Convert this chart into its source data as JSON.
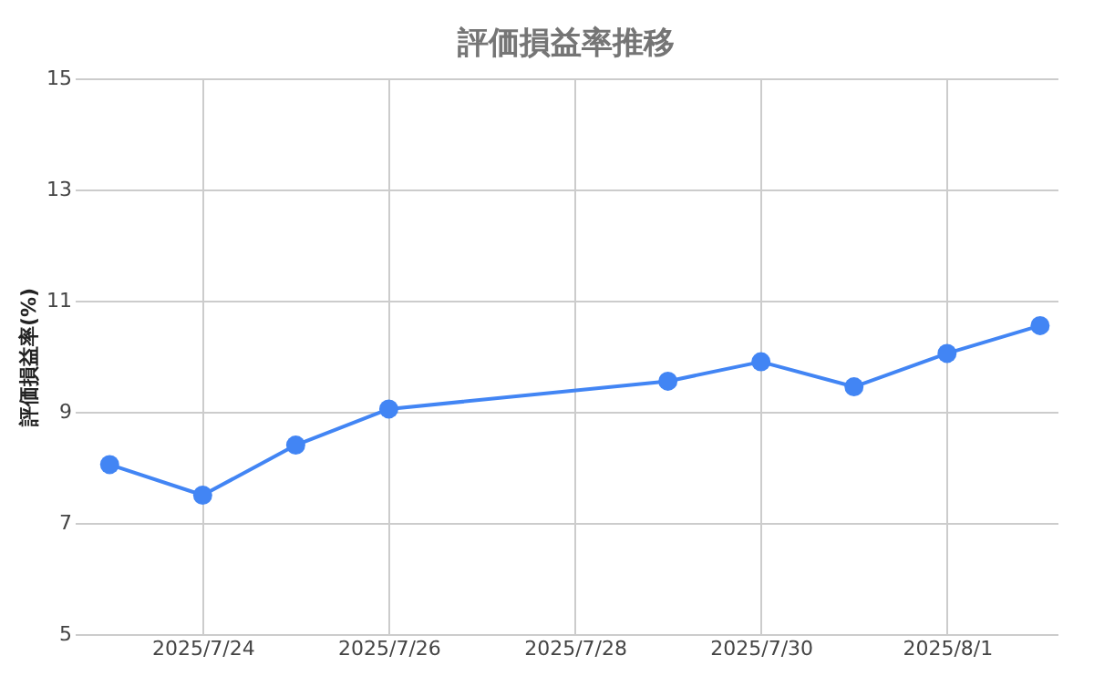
{
  "chart_data": {
    "type": "line",
    "title": "評価損益率推移",
    "ylabel": "評価損益率(%)",
    "x": [
      "2025-07-23",
      "2025-07-24",
      "2025-07-25",
      "2025-07-26",
      "2025-07-29",
      "2025-07-30",
      "2025-07-31",
      "2025-08-01",
      "2025-08-02"
    ],
    "series": [
      {
        "color": "#4285f4",
        "values": [
          8.05,
          7.5,
          8.4,
          9.05,
          9.55,
          9.9,
          9.45,
          10.05,
          10.55
        ]
      }
    ],
    "xlim": [
      "2025-07-22T15:00",
      "2025-08-02T04:30"
    ],
    "xticks": [
      {
        "value": "2025-07-24",
        "label": "2025/7/24"
      },
      {
        "value": "2025-07-26",
        "label": "2025/7/26"
      },
      {
        "value": "2025-07-28",
        "label": "2025/7/28"
      },
      {
        "value": "2025-07-30",
        "label": "2025/7/30"
      },
      {
        "value": "2025-08-01",
        "label": "2025/8/1"
      }
    ],
    "ylim": [
      5,
      15
    ],
    "yticks": [
      5,
      7,
      9,
      11,
      13,
      15
    ],
    "grid": true,
    "marker": "circle",
    "line_style": "solid"
  }
}
